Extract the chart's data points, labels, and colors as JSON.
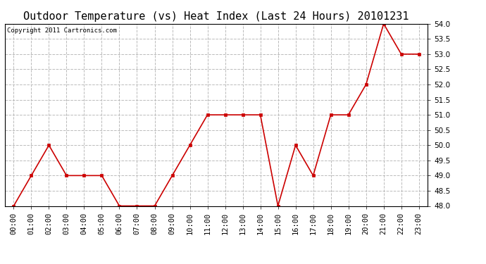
{
  "title": "Outdoor Temperature (vs) Heat Index (Last 24 Hours) 20101231",
  "copyright": "Copyright 2011 Cartronics.com",
  "x_labels": [
    "00:00",
    "01:00",
    "02:00",
    "03:00",
    "04:00",
    "05:00",
    "06:00",
    "07:00",
    "08:00",
    "09:00",
    "10:00",
    "11:00",
    "12:00",
    "13:00",
    "14:00",
    "15:00",
    "16:00",
    "17:00",
    "18:00",
    "19:00",
    "20:00",
    "21:00",
    "22:00",
    "23:00"
  ],
  "y_values": [
    48.0,
    49.0,
    50.0,
    49.0,
    49.0,
    49.0,
    48.0,
    48.0,
    48.0,
    49.0,
    50.0,
    51.0,
    51.0,
    51.0,
    51.0,
    48.0,
    50.0,
    49.0,
    51.0,
    51.0,
    52.0,
    54.0,
    53.0,
    53.0
  ],
  "line_color": "#cc0000",
  "marker": "s",
  "marker_size": 2.5,
  "marker_color": "#cc0000",
  "ylim_min": 48.0,
  "ylim_max": 54.0,
  "ytick_step": 0.5,
  "grid_color": "#bbbbbb",
  "grid_linestyle": "--",
  "bg_color": "#ffffff",
  "plot_bg_color": "#ffffff",
  "title_fontsize": 11,
  "copyright_fontsize": 6.5,
  "tick_fontsize": 7.5,
  "line_width": 1.2
}
